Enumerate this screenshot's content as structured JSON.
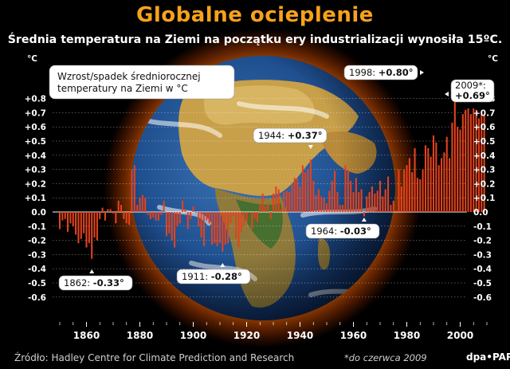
{
  "title": "Globalne ocieplenie",
  "subtitle": "Średnia temperatura na Ziemi na początku ery industrializacji wynosiła 15ºC.",
  "source": "Źródło: Hadley Centre for Climate Prediction and Research",
  "footnote": "*do czerwca 2009",
  "credit": "dpa•PAP",
  "colors": {
    "title": "#f7a21b",
    "bar": "#e2431e",
    "background": "#000000",
    "label_bg": "#ffffff"
  },
  "chart_data": {
    "type": "bar",
    "yunit": "°C",
    "ylabel": "Wzrost/spadek średniorocznej temperatury na Ziemi w °C",
    "ylim": [
      -0.65,
      0.85
    ],
    "yticks": [
      "+0.8",
      "+0.7",
      "+0.6",
      "+0.5",
      "+0.4",
      "+0.3",
      "+0.2",
      "+0.1",
      "0.0",
      "-0.1",
      "-0.2",
      "-0.3",
      "-0.4",
      "-0.5",
      "-0.6"
    ],
    "xticks": [
      "1860",
      "1880",
      "1900",
      "1920",
      "1940",
      "1960",
      "1980",
      "2000"
    ],
    "x_start": 1850,
    "x": [
      1850,
      1851,
      1852,
      1853,
      1854,
      1855,
      1856,
      1857,
      1858,
      1859,
      1860,
      1861,
      1862,
      1863,
      1864,
      1865,
      1866,
      1867,
      1868,
      1869,
      1870,
      1871,
      1872,
      1873,
      1874,
      1875,
      1876,
      1877,
      1878,
      1879,
      1880,
      1881,
      1882,
      1883,
      1884,
      1885,
      1886,
      1887,
      1888,
      1889,
      1890,
      1891,
      1892,
      1893,
      1894,
      1895,
      1896,
      1897,
      1898,
      1899,
      1900,
      1901,
      1902,
      1903,
      1904,
      1905,
      1906,
      1907,
      1908,
      1909,
      1910,
      1911,
      1912,
      1913,
      1914,
      1915,
      1916,
      1917,
      1918,
      1919,
      1920,
      1921,
      1922,
      1923,
      1924,
      1925,
      1926,
      1927,
      1928,
      1929,
      1930,
      1931,
      1932,
      1933,
      1934,
      1935,
      1936,
      1937,
      1938,
      1939,
      1940,
      1941,
      1942,
      1943,
      1944,
      1945,
      1946,
      1947,
      1948,
      1949,
      1950,
      1951,
      1952,
      1953,
      1954,
      1955,
      1956,
      1957,
      1958,
      1959,
      1960,
      1961,
      1962,
      1963,
      1964,
      1965,
      1966,
      1967,
      1968,
      1969,
      1970,
      1971,
      1972,
      1973,
      1974,
      1975,
      1976,
      1977,
      1978,
      1979,
      1980,
      1981,
      1982,
      1983,
      1984,
      1985,
      1986,
      1987,
      1988,
      1989,
      1990,
      1991,
      1992,
      1993,
      1994,
      1995,
      1996,
      1997,
      1998,
      1999,
      2000,
      2001,
      2002,
      2003,
      2004,
      2005,
      2006,
      2007,
      2008,
      2009
    ],
    "values": [
      -0.12,
      -0.06,
      -0.05,
      -0.14,
      -0.08,
      -0.1,
      -0.16,
      -0.22,
      -0.19,
      -0.15,
      -0.25,
      -0.22,
      -0.33,
      -0.18,
      -0.2,
      -0.05,
      0.03,
      -0.06,
      0.02,
      0.02,
      -0.01,
      -0.08,
      0.08,
      0.05,
      -0.05,
      -0.08,
      -0.09,
      0.3,
      0.33,
      0.05,
      0.1,
      0.12,
      0.1,
      -0.02,
      -0.05,
      -0.04,
      -0.06,
      -0.06,
      -0.02,
      0.08,
      -0.17,
      -0.15,
      -0.2,
      -0.25,
      -0.1,
      -0.08,
      0.08,
      0.02,
      -0.12,
      -0.05,
      0.04,
      0.0,
      -0.1,
      -0.18,
      -0.24,
      -0.06,
      -0.08,
      -0.23,
      -0.22,
      -0.24,
      -0.22,
      -0.28,
      -0.23,
      -0.22,
      -0.08,
      -0.03,
      -0.19,
      -0.25,
      -0.14,
      -0.1,
      -0.07,
      0.0,
      -0.12,
      -0.05,
      -0.07,
      0.05,
      0.13,
      0.04,
      0.06,
      -0.05,
      0.13,
      0.18,
      0.16,
      0.02,
      0.14,
      0.15,
      0.14,
      0.2,
      0.24,
      0.24,
      0.18,
      0.33,
      0.28,
      0.3,
      0.37,
      0.22,
      0.12,
      0.16,
      0.11,
      0.1,
      0.06,
      0.15,
      0.22,
      0.29,
      0.14,
      0.05,
      0.05,
      0.33,
      0.3,
      0.22,
      0.14,
      0.24,
      0.14,
      0.16,
      -0.03,
      0.11,
      0.14,
      0.18,
      0.13,
      0.15,
      0.22,
      0.11,
      0.16,
      0.25,
      0.05,
      0.08,
      0.01,
      0.3,
      0.18,
      0.3,
      0.33,
      0.38,
      0.28,
      0.45,
      0.24,
      0.23,
      0.3,
      0.47,
      0.45,
      0.39,
      0.54,
      0.49,
      0.33,
      0.38,
      0.42,
      0.53,
      0.38,
      0.63,
      0.8,
      0.6,
      0.58,
      0.69,
      0.72,
      0.73,
      0.69,
      0.73,
      0.72,
      0.66,
      0.69,
      0.69
    ],
    "annotations": [
      {
        "year": "1862",
        "value": "-0.33°",
        "sep": ": "
      },
      {
        "year": "1911",
        "value": "-0.28°",
        "sep": ": "
      },
      {
        "year": "1944",
        "value": "+0.37°",
        "sep": ": "
      },
      {
        "year": "1964",
        "value": "-0.03°",
        "sep": ": "
      },
      {
        "year": "1998",
        "value": "+0.80°",
        "sep": ": "
      },
      {
        "year": "2009*",
        "value": "+0.69°",
        "sep": ":"
      }
    ]
  }
}
